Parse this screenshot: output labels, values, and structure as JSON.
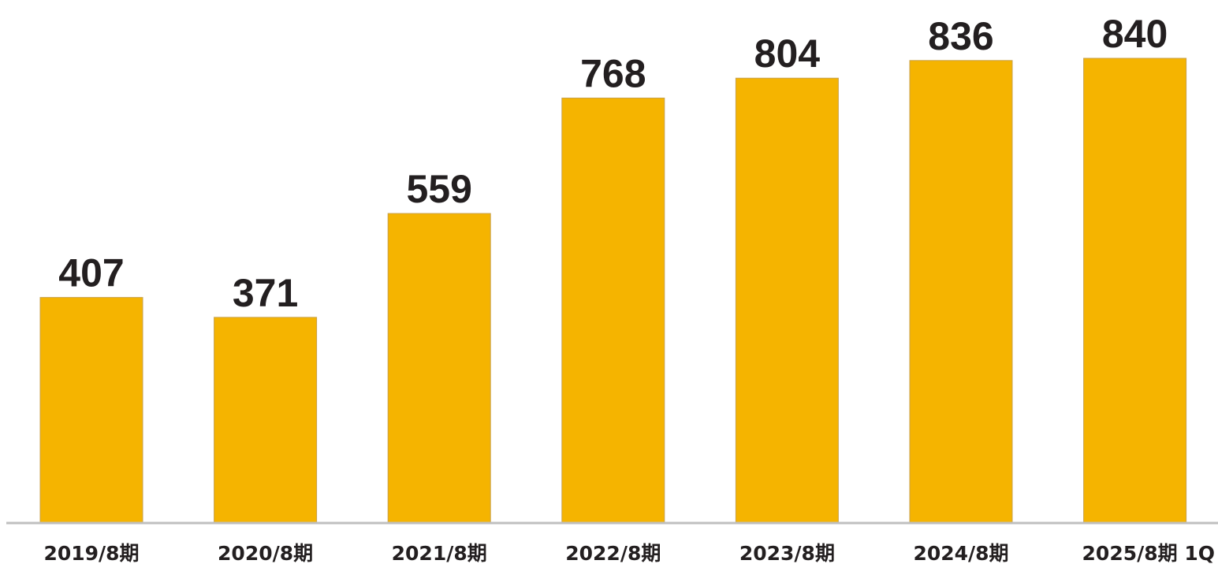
{
  "chart_data": {
    "type": "bar",
    "title": "",
    "xlabel": "",
    "ylabel": "",
    "categories": [
      "2019/8期",
      "2020/8期",
      "2021/8期",
      "2022/8期",
      "2023/8期",
      "2024/8期",
      "2025/8期 1Q"
    ],
    "values": [
      407,
      371,
      559,
      768,
      804,
      836,
      840
    ],
    "ylim": [
      0,
      840
    ],
    "data_labels": [
      "407",
      "371",
      "559",
      "768",
      "804",
      "836",
      "840"
    ],
    "grid": false,
    "legend": "none",
    "colors": {
      "bar": "#f5b400",
      "bar_outline": "#c8a14a",
      "axis": "#bfbfbf",
      "text": "#231f20"
    }
  }
}
